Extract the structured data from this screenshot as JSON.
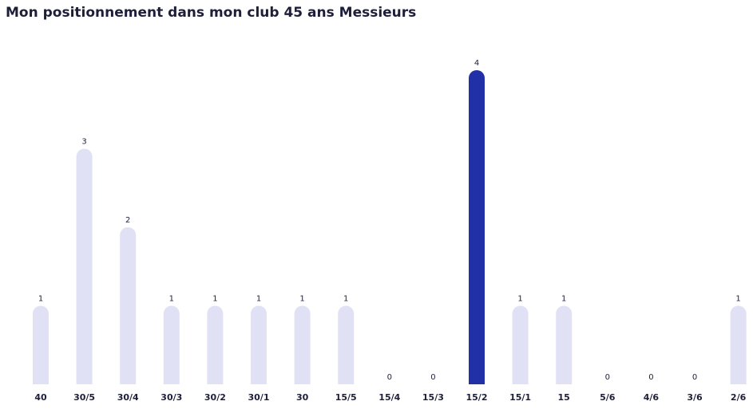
{
  "title": "Mon positionnement dans mon club 45 ans Messieurs",
  "colors": {
    "bar_default": "#e0e1f5",
    "bar_highlight": "#2230a8",
    "text": "#1d1f3a"
  },
  "chart_data": {
    "type": "bar",
    "title": "Mon positionnement dans mon club 45 ans Messieurs",
    "xlabel": "",
    "ylabel": "",
    "categories": [
      "40",
      "30/5",
      "30/4",
      "30/3",
      "30/2",
      "30/1",
      "30",
      "15/5",
      "15/4",
      "15/3",
      "15/2",
      "15/1",
      "15",
      "5/6",
      "4/6",
      "3/6",
      "2/6"
    ],
    "values": [
      1,
      3,
      2,
      1,
      1,
      1,
      1,
      1,
      0,
      0,
      4,
      1,
      1,
      0,
      0,
      0,
      1
    ],
    "highlight_category": "15/2",
    "ylim": [
      0,
      4
    ],
    "grid": false,
    "data_labels": true
  }
}
